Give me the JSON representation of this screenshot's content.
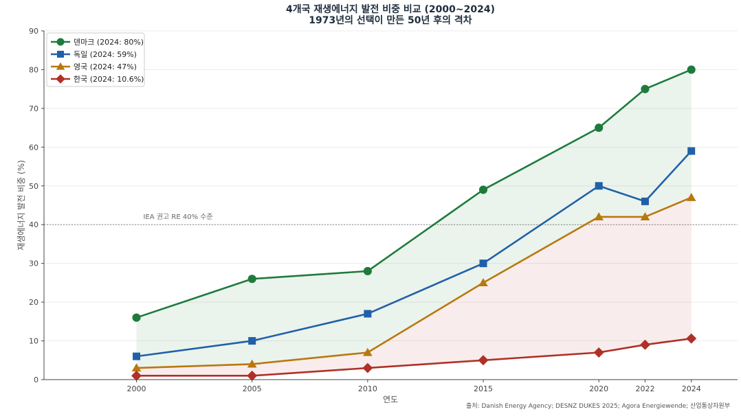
{
  "chart_data": {
    "type": "line",
    "title": "4개국 재생에너지 발전 비중 비교 (2000~2024)",
    "subtitle": "1973년의 선택이 만든 50년 후의 격차",
    "xlabel": "연도",
    "ylabel": "재생에너지 발전 비중 (%)",
    "x": [
      2000,
      2005,
      2010,
      2015,
      2020,
      2022,
      2024
    ],
    "xlim": [
      1996,
      2026
    ],
    "ylim": [
      0,
      90
    ],
    "yticks": [
      0,
      10,
      20,
      30,
      40,
      50,
      60,
      70,
      80,
      90
    ],
    "xticks": [
      2000,
      2005,
      2010,
      2015,
      2020,
      2022,
      2024
    ],
    "grid": "horizontal",
    "legend_position": "top-left",
    "series": [
      {
        "name": "덴마크 (2024: 80%)",
        "color": "#1e7b3c",
        "marker": "circle",
        "values": [
          16,
          26,
          28,
          49,
          65,
          75,
          80
        ]
      },
      {
        "name": "독일 (2024: 59%)",
        "color": "#2160a8",
        "marker": "square",
        "values": [
          6,
          10,
          17,
          30,
          50,
          46,
          59
        ]
      },
      {
        "name": "영국 (2024: 47%)",
        "color": "#b8780c",
        "marker": "triangle",
        "values": [
          3,
          4,
          7,
          25,
          42,
          42,
          47
        ]
      },
      {
        "name": "한국 (2024: 10.6%)",
        "color": "#b03028",
        "marker": "diamond",
        "values": [
          1,
          1,
          3,
          5,
          7,
          9,
          10.6
        ]
      }
    ],
    "shaded_regions": [
      {
        "between": [
          "덴마크 (2024: 80%)",
          "영국 (2024: 47%)"
        ],
        "color": "#1e7b3c"
      },
      {
        "between": [
          "영국 (2024: 47%)",
          "한국 (2024: 10.6%)"
        ],
        "color": "#b03028"
      }
    ],
    "reference_line": {
      "value": 40,
      "label": "IEA 권고 RE 40% 수준"
    },
    "source": "출처: Danish Energy Agency; DESNZ DUKES 2025; Agora Energiewende; 산업통상자원부"
  }
}
